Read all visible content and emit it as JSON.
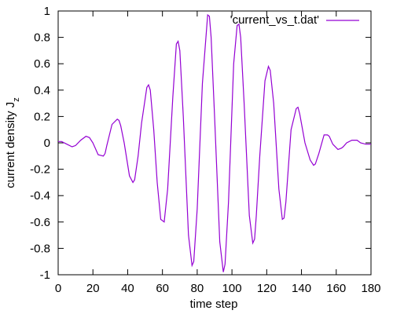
{
  "chart_data": {
    "type": "line",
    "title": "",
    "xlabel": "time step",
    "ylabel": {
      "main": "current density J",
      "sub": "z"
    },
    "xlim": [
      0,
      180
    ],
    "ylim": [
      -1,
      1
    ],
    "xticks": [
      0,
      20,
      40,
      60,
      80,
      100,
      120,
      140,
      160,
      180
    ],
    "yticks": [
      -1,
      -0.8,
      -0.6,
      -0.4,
      -0.2,
      0,
      0.2,
      0.4,
      0.6,
      0.8,
      1
    ],
    "ytick_labels": [
      "-1",
      "-0.8",
      "-0.6",
      "-0.4",
      "-0.2",
      "0",
      "0.2",
      "0.4",
      "0.6",
      "0.8",
      "1"
    ],
    "grid": false,
    "legend_position": "top-right",
    "series": [
      {
        "name": "'current_vs_t.dat'",
        "color": "#9400d3",
        "x": [
          0,
          2,
          5,
          8,
          10,
          13,
          16,
          18,
          20,
          23,
          26,
          27,
          28,
          31,
          34,
          35,
          36,
          38,
          41,
          43,
          44,
          46,
          48,
          51,
          52,
          53,
          55,
          57,
          59,
          61,
          63,
          66,
          68,
          69,
          70,
          72,
          75,
          77,
          78,
          80,
          83,
          86,
          87,
          88,
          90,
          93,
          95,
          96,
          98,
          101,
          103,
          104,
          105,
          107,
          110,
          112,
          113,
          114,
          116,
          119,
          121,
          122,
          124,
          127,
          129,
          130,
          131,
          134,
          137,
          138,
          139,
          142,
          145,
          147,
          148,
          150,
          153,
          155,
          156,
          158,
          161,
          163,
          164,
          166,
          169,
          172,
          174,
          177,
          180
        ],
        "y": [
          0.01,
          0.01,
          -0.01,
          -0.03,
          -0.02,
          0.02,
          0.05,
          0.04,
          0.0,
          -0.09,
          -0.1,
          -0.08,
          -0.02,
          0.14,
          0.18,
          0.17,
          0.13,
          0.0,
          -0.25,
          -0.3,
          -0.28,
          -0.1,
          0.15,
          0.42,
          0.44,
          0.4,
          0.1,
          -0.3,
          -0.58,
          -0.6,
          -0.35,
          0.35,
          0.75,
          0.77,
          0.7,
          0.2,
          -0.7,
          -0.93,
          -0.9,
          -0.5,
          0.45,
          0.97,
          0.96,
          0.8,
          0.2,
          -0.75,
          -0.98,
          -0.92,
          -0.45,
          0.6,
          0.89,
          0.9,
          0.8,
          0.3,
          -0.55,
          -0.76,
          -0.73,
          -0.55,
          -0.1,
          0.47,
          0.58,
          0.55,
          0.3,
          -0.35,
          -0.58,
          -0.57,
          -0.45,
          0.1,
          0.26,
          0.27,
          0.22,
          0.0,
          -0.13,
          -0.17,
          -0.16,
          -0.08,
          0.06,
          0.06,
          0.05,
          -0.01,
          -0.05,
          -0.04,
          -0.03,
          0.0,
          0.02,
          0.02,
          0.0,
          -0.01,
          -0.01
        ]
      }
    ]
  }
}
